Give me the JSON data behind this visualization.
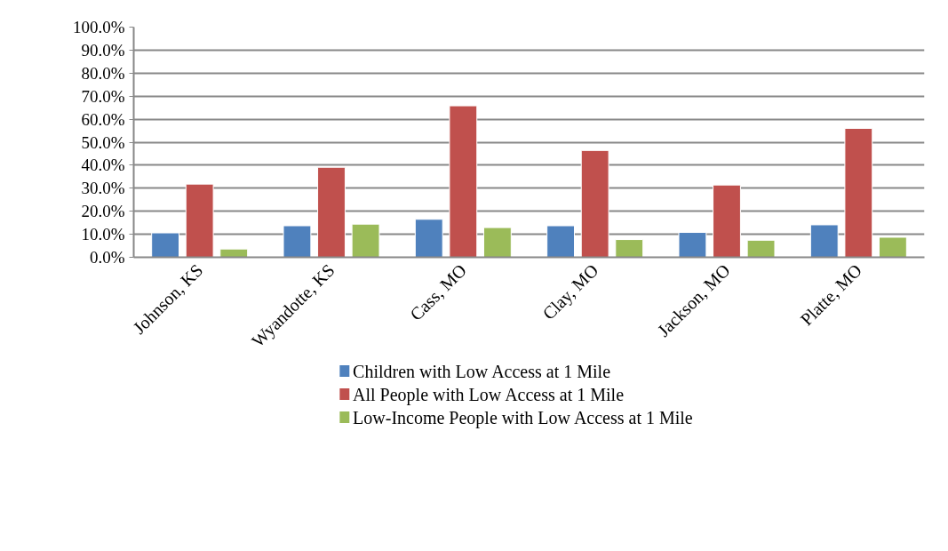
{
  "chart_data": {
    "type": "bar",
    "categories": [
      "Johnson, KS",
      "Wyandotte, KS",
      "Cass, MO",
      "Clay, MO",
      "Jackson, MO",
      "Platte, MO"
    ],
    "series": [
      {
        "name": "Children with Low Access at 1 Mile",
        "color": "#4f81bd",
        "values": [
          10.6,
          13.7,
          16.5,
          13.7,
          10.8,
          14.1
        ]
      },
      {
        "name": "All People with Low Access at 1 Mile",
        "color": "#c0504d",
        "values": [
          31.8,
          39.1,
          65.8,
          46.4,
          31.4,
          56.0
        ]
      },
      {
        "name": "Low-Income People with Low Access at 1 Mile",
        "color": "#9bbb59",
        "values": [
          3.6,
          14.4,
          12.9,
          7.7,
          7.4,
          8.7
        ]
      }
    ],
    "ylim": [
      0,
      100
    ],
    "yticks": [
      {
        "value": 0,
        "label": "0.0%"
      },
      {
        "value": 10,
        "label": "10.0%"
      },
      {
        "value": 20,
        "label": "20.0%"
      },
      {
        "value": 30,
        "label": "30.0%"
      },
      {
        "value": 40,
        "label": "40.0%"
      },
      {
        "value": 50,
        "label": "50.0%"
      },
      {
        "value": 60,
        "label": "60.0%"
      },
      {
        "value": 70,
        "label": "70.0%"
      },
      {
        "value": 80,
        "label": "80.0%"
      },
      {
        "value": 90,
        "label": "90.0%"
      },
      {
        "value": 100,
        "label": "100.0%"
      }
    ],
    "grid": "y",
    "legend": "bottom"
  }
}
